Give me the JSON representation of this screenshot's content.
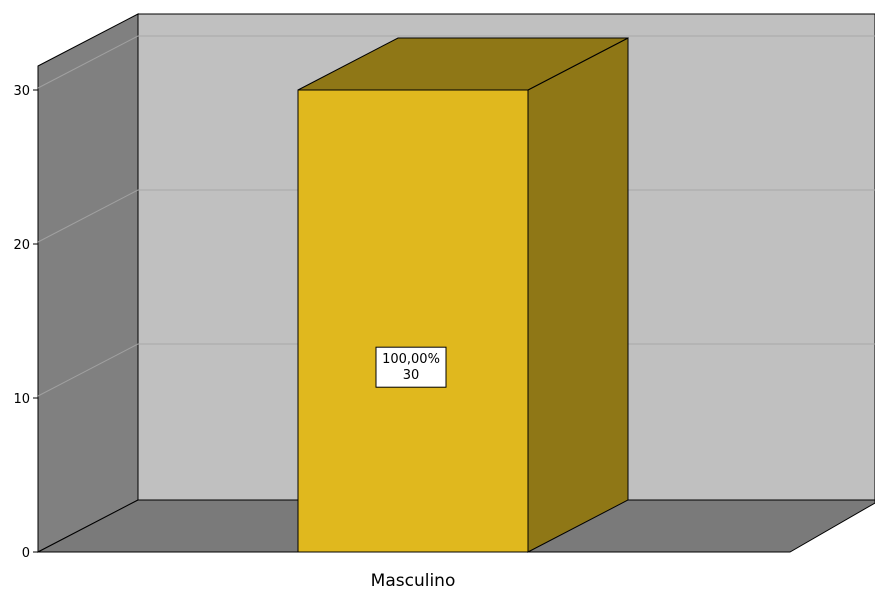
{
  "chart_data": {
    "type": "bar",
    "style": "3d",
    "categories": [
      "Masculino"
    ],
    "values": [
      30
    ],
    "data_labels": [
      {
        "percent": "100,00%",
        "count": "30"
      }
    ],
    "title": "",
    "xlabel": "",
    "ylabel": "",
    "ylim": [
      0,
      30
    ],
    "yticks": [
      "0",
      "10",
      "20",
      "30"
    ],
    "grid": true,
    "colors": {
      "bar_front": "#e0b81e",
      "bar_top": "#8f7716",
      "bar_side": "#8f7716",
      "back_wall": "#c0c0c0",
      "side_wall": "#808080",
      "floor": "#7a7a7a"
    }
  }
}
